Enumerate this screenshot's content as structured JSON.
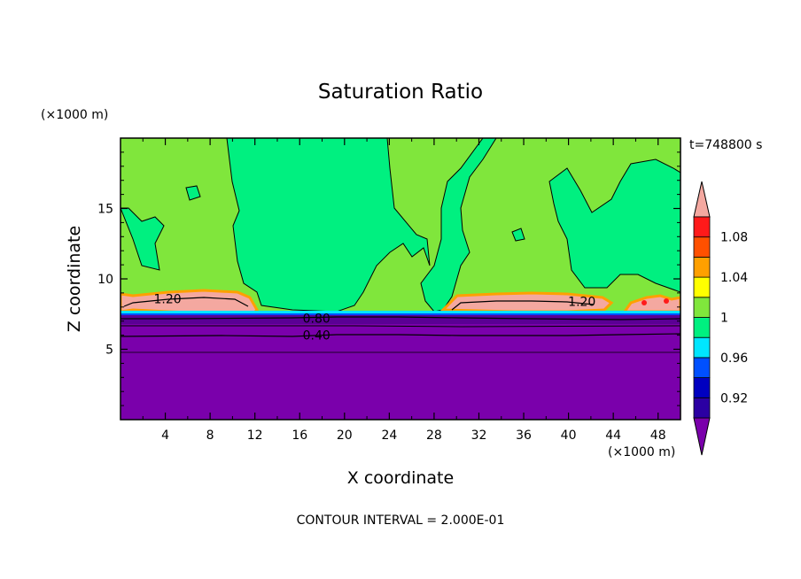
{
  "chart_data": {
    "type": "heatmap",
    "title": "Saturation Ratio",
    "xlabel": "X coordinate",
    "ylabel": "Z coordinate",
    "x_unit": "(×1000 m)",
    "y_unit": "(×1000 m)",
    "time_label": "t=748800 s",
    "footer": "CONTOUR INTERVAL = 2.000E-01",
    "xlim": [
      0,
      50
    ],
    "ylim": [
      0,
      20
    ],
    "x_ticks": [
      4,
      8,
      12,
      16,
      20,
      24,
      28,
      32,
      36,
      40,
      44,
      48
    ],
    "x_tick_labels": [
      "4",
      "8",
      "12",
      "16",
      "20",
      "24",
      "28",
      "32",
      "36",
      "40",
      "44",
      "48"
    ],
    "y_ticks": [
      5,
      10,
      15
    ],
    "y_tick_labels": [
      "5",
      "10",
      "15"
    ],
    "contour_labels": [
      {
        "text": "1.20",
        "x": 4.2,
        "z": 8.6
      },
      {
        "text": "1.20",
        "x": 41.2,
        "z": 8.4
      },
      {
        "text": "0.80",
        "x": 17.5,
        "z": 7.2
      },
      {
        "text": "0.40",
        "x": 17.5,
        "z": 6.0
      }
    ],
    "colorbar": {
      "levels": [
        0.92,
        0.94,
        0.96,
        0.98,
        1.0,
        1.02,
        1.04,
        1.06,
        1.08,
        1.1
      ],
      "tick_labels": [
        "0.92",
        "0.96",
        "1",
        "1.04",
        "1.08"
      ],
      "tick_values": [
        0.92,
        0.96,
        1.0,
        1.04,
        1.08
      ],
      "under_color": "#7a00ab",
      "over_color": "#f4a8a0",
      "bins": [
        {
          "from": 0.9,
          "to": 0.92,
          "color": "#2b00a3"
        },
        {
          "from": 0.92,
          "to": 0.94,
          "color": "#0000c0"
        },
        {
          "from": 0.94,
          "to": 0.96,
          "color": "#0050ff"
        },
        {
          "from": 0.96,
          "to": 0.98,
          "color": "#00e6ff"
        },
        {
          "from": 0.98,
          "to": 1.0,
          "color": "#00f080"
        },
        {
          "from": 1.0,
          "to": 1.02,
          "color": "#80e63c"
        },
        {
          "from": 1.02,
          "to": 1.04,
          "color": "#ffff00"
        },
        {
          "from": 1.04,
          "to": 1.06,
          "color": "#ffa000"
        },
        {
          "from": 1.06,
          "to": 1.08,
          "color": "#ff5000"
        },
        {
          "from": 1.08,
          "to": 1.1,
          "color": "#ff1a1a"
        }
      ]
    },
    "regions": [
      {
        "kind": "dry_layer",
        "z_range": [
          0,
          7.3
        ],
        "value": 0.4,
        "color": "#7a00ab"
      },
      {
        "kind": "moist_upper",
        "value": 1.0,
        "color": "#00f080"
      },
      {
        "kind": "supersaturated",
        "value": 1.01,
        "color": "#80e63c"
      },
      {
        "kind": "cloud_layer",
        "x_range": [
          0,
          12
        ],
        "z_range": [
          7.5,
          8.9
        ],
        "value": 1.2,
        "color": "#f4a8a0"
      },
      {
        "kind": "cloud_layer",
        "x_range": [
          29.5,
          44
        ],
        "z_range": [
          7.5,
          8.9
        ],
        "value": 1.2,
        "color": "#f4a8a0"
      },
      {
        "kind": "cloud_layer",
        "x_range": [
          45,
          50
        ],
        "z_range": [
          7.5,
          8.9
        ],
        "value": 1.2,
        "color": "#f4a8a0"
      }
    ]
  }
}
